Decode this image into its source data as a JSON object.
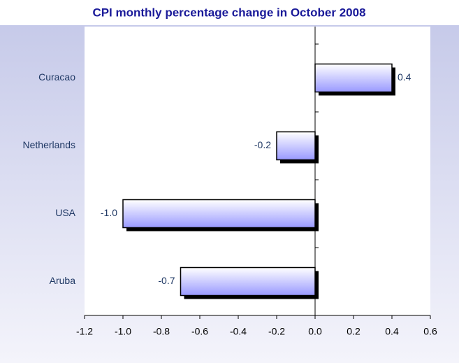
{
  "chart_data": {
    "type": "bar",
    "orientation": "horizontal",
    "title": "CPI monthly percentage change in October 2008",
    "categories": [
      "Curacao",
      "Netherlands",
      "USA",
      "Aruba"
    ],
    "values": [
      0.4,
      -0.2,
      -1.0,
      -0.7
    ],
    "value_labels": [
      "0.4",
      "-0.2",
      "-1.0",
      "-0.7"
    ],
    "color": "#9999ff",
    "xlim": [
      -1.2,
      0.6
    ],
    "xticks": [
      -1.2,
      {
        "value": -1.0,
        "label": "-1.0"
      },
      -0.8,
      -0.6,
      -0.4,
      -0.2,
      {
        "value": 0,
        "label": "0.0"
      },
      0.2,
      0.4,
      0.6
    ],
    "grid": false
  }
}
